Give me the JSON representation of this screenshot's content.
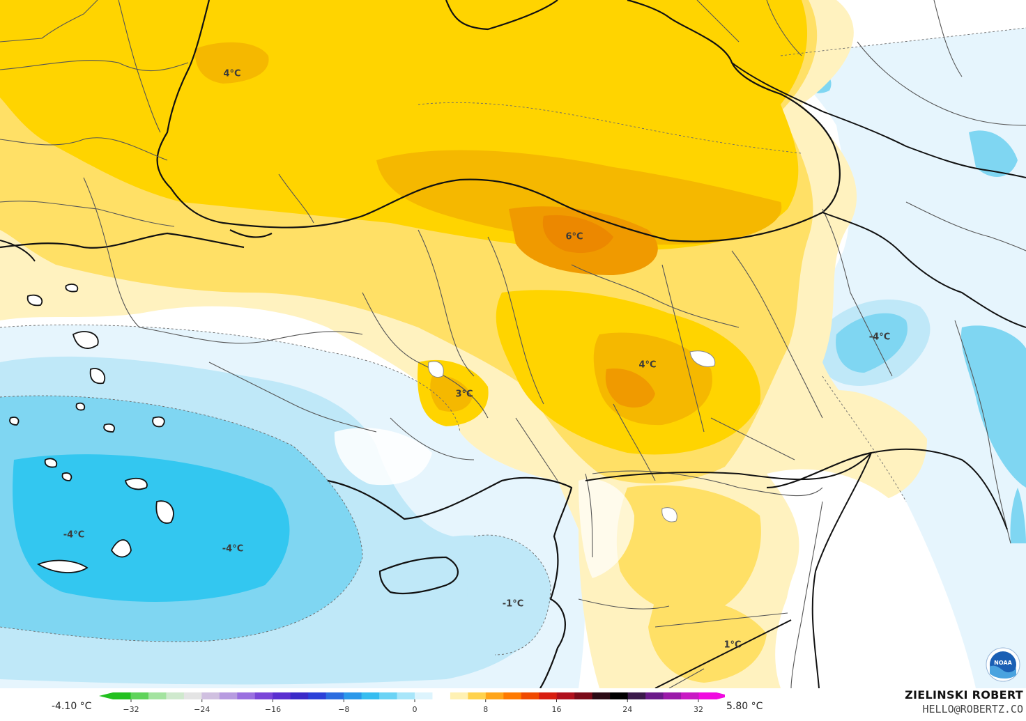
{
  "map": {
    "labels": [
      "4°C",
      "6°C",
      "4°C",
      "3°C",
      "-4°C",
      "-4°C",
      "-4°C",
      "-1°C",
      "1°C"
    ],
    "palette": {
      "warm_strong": "#f5a800",
      "warm": "#ffd400",
      "warm_light": "#ffe066",
      "warm_pale": "#fff2bf",
      "neutral": "#ffffff",
      "cool_pale": "#e6f5fd",
      "cool_light": "#bfe8f8",
      "cool": "#7fd6f2",
      "cool_strong": "#33c7f0",
      "sea_border": "#000000",
      "admin_border": "#555555"
    }
  },
  "legend": {
    "min_label": "-4.10 °C",
    "max_label": "5.80 °C",
    "ticks": [
      "−32",
      "−24",
      "−16",
      "−8",
      "0",
      "8",
      "16",
      "24",
      "32"
    ],
    "colors": [
      "#22c01f",
      "#5fd35a",
      "#a3e39f",
      "#cfe9cd",
      "#e4e4e4",
      "#d0c0e0",
      "#b79be0",
      "#9a6fe0",
      "#7a45d8",
      "#5a2ed0",
      "#3a2ac8",
      "#2a40d8",
      "#2a6ce0",
      "#2a98ea",
      "#36bdf0",
      "#6ad3f5",
      "#a8e6fa",
      "#ddf4fd",
      "#ffffff",
      "#fff1b3",
      "#ffd24d",
      "#ffa51a",
      "#ff7a00",
      "#f04a00",
      "#d81e10",
      "#b0101c",
      "#7a0a18",
      "#2a0a14",
      "#000000",
      "#3a1a4a",
      "#6a1a8a",
      "#9a1aaa",
      "#c81ac4",
      "#f00ae0"
    ]
  },
  "credit": {
    "name": "ZIELINSKI ROBERT",
    "email": "HELLO@ROBERTZ.CO"
  },
  "logo": {
    "text": "NOAA",
    "colors": {
      "blue": "#1a5fb4",
      "light": "#4aa3df",
      "white": "#ffffff"
    }
  }
}
